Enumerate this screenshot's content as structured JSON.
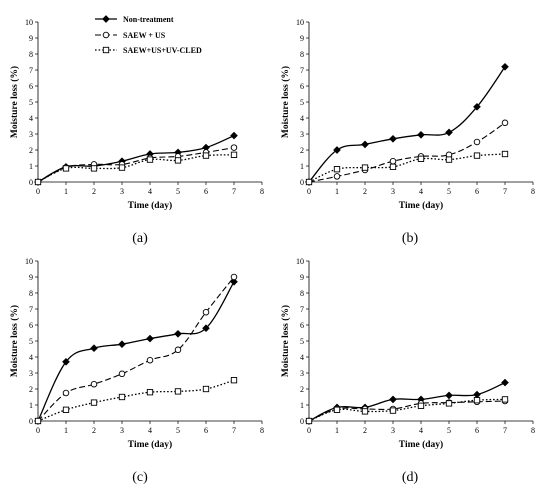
{
  "chart_data": [
    {
      "type": "line",
      "panel_label": "(a)",
      "x": [
        0,
        1,
        2,
        3,
        4,
        5,
        6,
        7
      ],
      "xlabel": "Time (day)",
      "ylabel": "Moisture loss (%)",
      "xlim": [
        0,
        8
      ],
      "ylim": [
        0,
        10
      ],
      "xticks": [
        "0",
        "1",
        "2",
        "3",
        "4",
        "5",
        "6",
        "7",
        "8"
      ],
      "yticks": [
        "0",
        "1",
        "2",
        "3",
        "4",
        "5",
        "6",
        "7",
        "8",
        "9",
        "10"
      ],
      "grid": false,
      "legend": "top-left",
      "series": [
        {
          "name": "Non-treatment",
          "values": [
            0,
            0.95,
            1.0,
            1.3,
            1.75,
            1.85,
            2.15,
            2.9
          ]
        },
        {
          "name": "SAEW + US",
          "values": [
            0,
            0.9,
            1.1,
            1.1,
            1.5,
            1.6,
            1.85,
            2.15
          ]
        },
        {
          "name": "SAEW+US+UV-CLED",
          "values": [
            0,
            0.85,
            0.85,
            0.9,
            1.4,
            1.35,
            1.65,
            1.7
          ]
        }
      ]
    },
    {
      "type": "line",
      "panel_label": "(b)",
      "x": [
        0,
        1,
        2,
        3,
        4,
        5,
        6,
        7
      ],
      "xlabel": "Time (day)",
      "ylabel": "Moisture loss (%)",
      "xlim": [
        0,
        8
      ],
      "ylim": [
        0,
        10
      ],
      "xticks": [
        "0",
        "1",
        "2",
        "3",
        "4",
        "5",
        "6",
        "7",
        "8"
      ],
      "yticks": [
        "0",
        "1",
        "2",
        "3",
        "4",
        "5",
        "6",
        "7",
        "8",
        "9",
        "10"
      ],
      "grid": false,
      "series": [
        {
          "name": "Non-treatment",
          "values": [
            0,
            2.0,
            2.35,
            2.7,
            2.95,
            3.1,
            4.7,
            7.2
          ]
        },
        {
          "name": "SAEW + US",
          "values": [
            0,
            0.35,
            0.75,
            1.3,
            1.6,
            1.7,
            2.5,
            3.7
          ]
        },
        {
          "name": "SAEW+US+UV-CLED",
          "values": [
            0,
            0.8,
            0.9,
            0.95,
            1.45,
            1.4,
            1.65,
            1.75
          ]
        }
      ]
    },
    {
      "type": "line",
      "panel_label": "(c)",
      "x": [
        0,
        1,
        2,
        3,
        4,
        5,
        6,
        7
      ],
      "xlabel": "Time (day)",
      "ylabel": "Moisture loss (%)",
      "xlim": [
        0,
        8
      ],
      "ylim": [
        0,
        10
      ],
      "xticks": [
        "0",
        "1",
        "2",
        "3",
        "4",
        "5",
        "6",
        "7",
        "8"
      ],
      "yticks": [
        "0",
        "1",
        "2",
        "3",
        "4",
        "5",
        "6",
        "7",
        "8",
        "9",
        "10"
      ],
      "grid": false,
      "series": [
        {
          "name": "Non-treatment",
          "values": [
            0,
            3.7,
            4.55,
            4.8,
            5.15,
            5.45,
            5.8,
            8.7
          ]
        },
        {
          "name": "SAEW + US",
          "values": [
            0,
            1.75,
            2.3,
            2.95,
            3.8,
            4.45,
            6.8,
            9.0
          ]
        },
        {
          "name": "SAEW+US+UV-CLED",
          "values": [
            0,
            0.7,
            1.15,
            1.5,
            1.8,
            1.85,
            2.0,
            2.55
          ]
        }
      ]
    },
    {
      "type": "line",
      "panel_label": "(d)",
      "x": [
        0,
        1,
        2,
        3,
        4,
        5,
        6,
        7
      ],
      "xlabel": "Time (day)",
      "ylabel": "Moisture loss (%)",
      "xlim": [
        0,
        8
      ],
      "ylim": [
        0,
        10
      ],
      "xticks": [
        "0",
        "1",
        "2",
        "3",
        "4",
        "5",
        "6",
        "7",
        "8"
      ],
      "yticks": [
        "0",
        "1",
        "2",
        "3",
        "4",
        "5",
        "6",
        "7",
        "8",
        "9",
        "10"
      ],
      "grid": false,
      "series": [
        {
          "name": "Non-treatment",
          "values": [
            0,
            0.85,
            0.85,
            1.35,
            1.35,
            1.6,
            1.65,
            2.4
          ]
        },
        {
          "name": "SAEW + US",
          "values": [
            0,
            0.75,
            0.75,
            0.75,
            1.1,
            1.15,
            1.2,
            1.25
          ]
        },
        {
          "name": "SAEW+US+UV-CLED",
          "values": [
            0,
            0.7,
            0.6,
            0.65,
            0.95,
            1.1,
            1.3,
            1.35
          ]
        }
      ]
    }
  ]
}
